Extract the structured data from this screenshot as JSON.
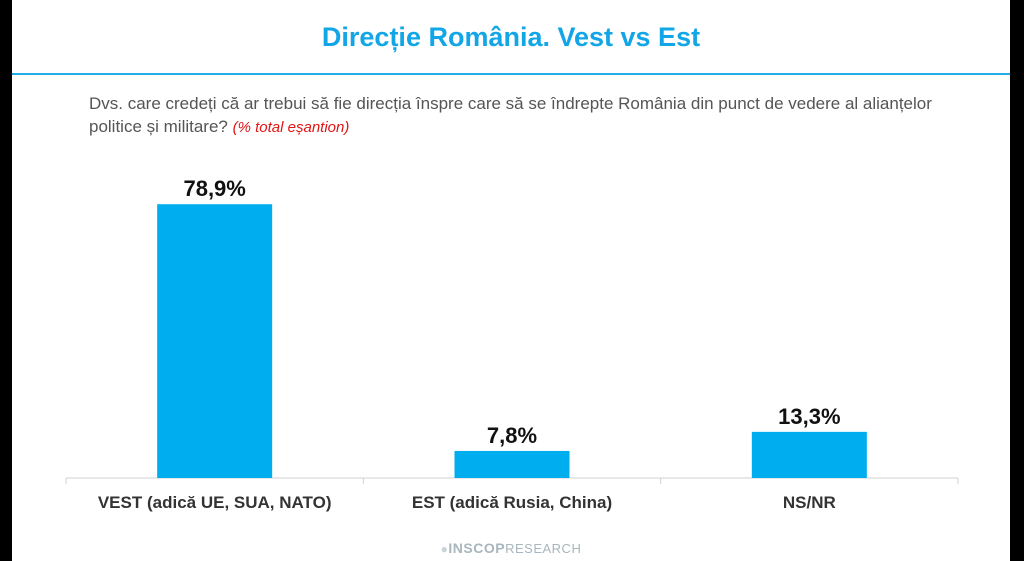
{
  "title": "Direcție România. Vest vs Est",
  "question": "Dvs. care credeți că ar trebui să fie direcția înspre care să se îndrepte România din punct de vedere al alianțelor politice și militare?",
  "question_note": "(% total eșantion)",
  "footer": {
    "brand": "INSCOP",
    "suffix": "RESEARCH"
  },
  "colors": {
    "bar": "#00aeef",
    "title": "#12a6e6",
    "note": "#e01515"
  },
  "chart_data": {
    "type": "bar",
    "categories": [
      "VEST (adică UE, SUA, NATO)",
      "EST (adică Rusia, China)",
      "NS/NR"
    ],
    "values": [
      78.9,
      7.8,
      13.3
    ],
    "value_labels": [
      "78,9%",
      "7,8%",
      "13,3%"
    ],
    "title": "",
    "xlabel": "",
    "ylabel": "",
    "ylim": [
      0,
      100
    ],
    "grid": false,
    "legend": "none"
  }
}
